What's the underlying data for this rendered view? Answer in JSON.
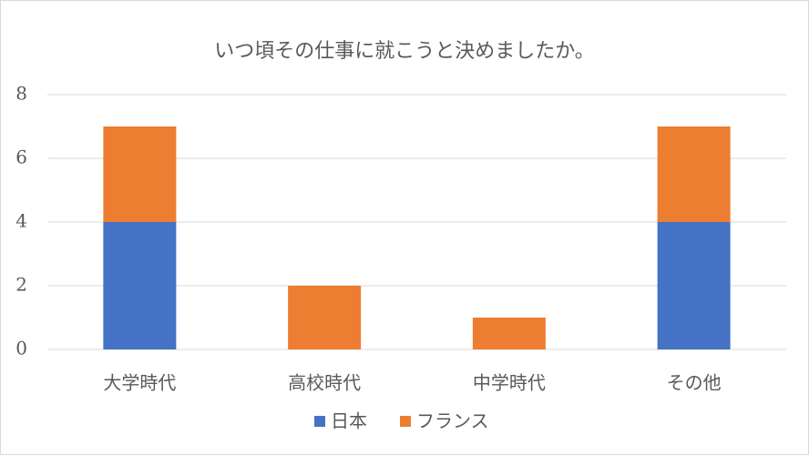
{
  "chart_data": {
    "type": "stacked_bar",
    "title": "いつ頃その仕事に就こうと決めましたか。",
    "categories": [
      "大学時代",
      "高校時代",
      "中学時代",
      "その他"
    ],
    "series": [
      {
        "name": "日本",
        "color": "#4472c4",
        "values": [
          4,
          0,
          0,
          4
        ]
      },
      {
        "name": "フランス",
        "color": "#ed7d31",
        "values": [
          3,
          2,
          1,
          3
        ]
      }
    ],
    "ylim": [
      0,
      8
    ],
    "yticks": [
      0,
      2,
      4,
      6,
      8
    ],
    "grid": true,
    "legend": "bottom"
  }
}
